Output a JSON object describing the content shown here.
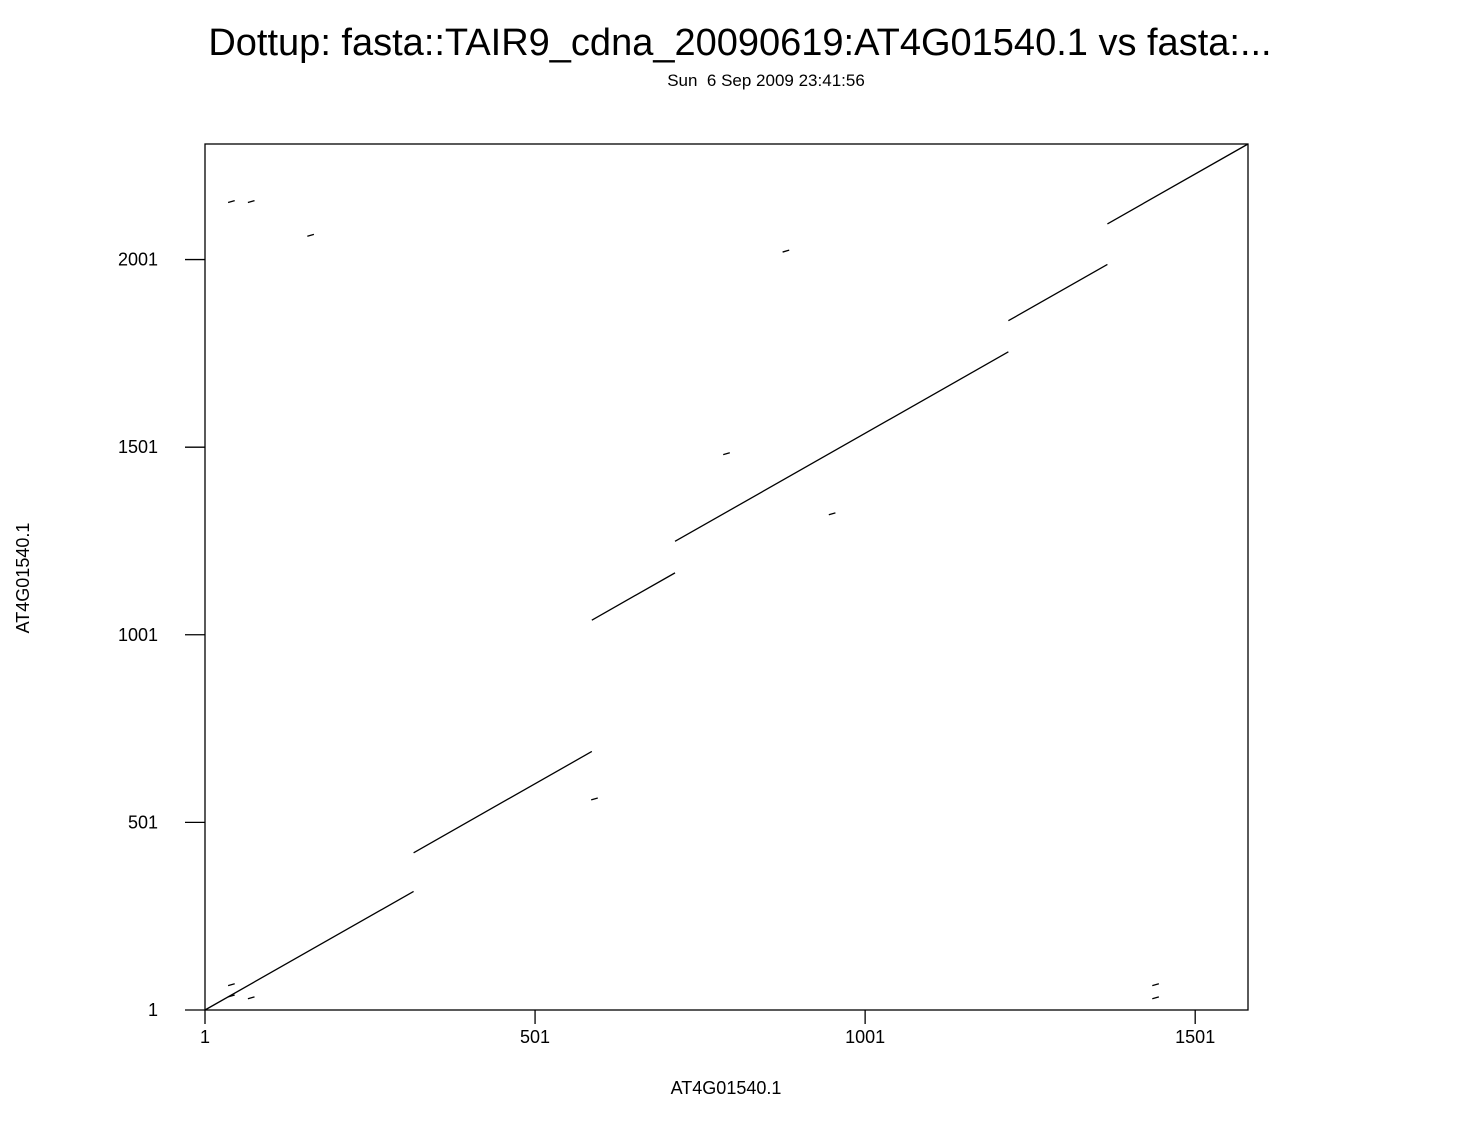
{
  "chart_data": {
    "type": "scatter",
    "title": "Dottup: fasta::TAIR9_cdna_20090619:AT4G01540.1 vs fasta:...",
    "subtitle": "Sun  6 Sep 2009 23:41:56",
    "xlabel": "AT4G01540.1",
    "ylabel": "AT4G01540.1",
    "xlim": [
      1,
      1581
    ],
    "ylim": [
      1,
      2309
    ],
    "x_ticks": [
      1,
      501,
      1001,
      1501
    ],
    "y_ticks": [
      1,
      501,
      1001,
      1501,
      2001
    ],
    "grid": false,
    "match_segments": [
      {
        "x": [
          1,
          317
        ],
        "y": [
          1,
          317
        ]
      },
      {
        "x": [
          317,
          587
        ],
        "y": [
          420,
          690
        ]
      },
      {
        "x": [
          587,
          713
        ],
        "y": [
          1040,
          1166
        ]
      },
      {
        "x": [
          713,
          1218
        ],
        "y": [
          1250,
          1755
        ]
      },
      {
        "x": [
          1218,
          1368
        ],
        "y": [
          1838,
          1988
        ]
      },
      {
        "x": [
          1368,
          1581
        ],
        "y": [
          2096,
          2309
        ]
      },
      {
        "x": [
          36,
          46
        ],
        "y": [
          2153,
          2158
        ]
      },
      {
        "x": [
          66,
          76
        ],
        "y": [
          2153,
          2158
        ]
      },
      {
        "x": [
          156,
          166
        ],
        "y": [
          2063,
          2068
        ]
      },
      {
        "x": [
          876,
          886
        ],
        "y": [
          2021,
          2026
        ]
      },
      {
        "x": [
          786,
          796
        ],
        "y": [
          1481,
          1486
        ]
      },
      {
        "x": [
          946,
          956
        ],
        "y": [
          1321,
          1326
        ]
      },
      {
        "x": [
          586,
          596
        ],
        "y": [
          561,
          566
        ]
      },
      {
        "x": [
          36,
          46
        ],
        "y": [
          66,
          71
        ]
      },
      {
        "x": [
          36,
          46
        ],
        "y": [
          36,
          41
        ]
      },
      {
        "x": [
          66,
          76
        ],
        "y": [
          31,
          36
        ]
      },
      {
        "x": [
          1436,
          1446
        ],
        "y": [
          66,
          71
        ]
      },
      {
        "x": [
          1436,
          1446
        ],
        "y": [
          31,
          36
        ]
      }
    ]
  }
}
